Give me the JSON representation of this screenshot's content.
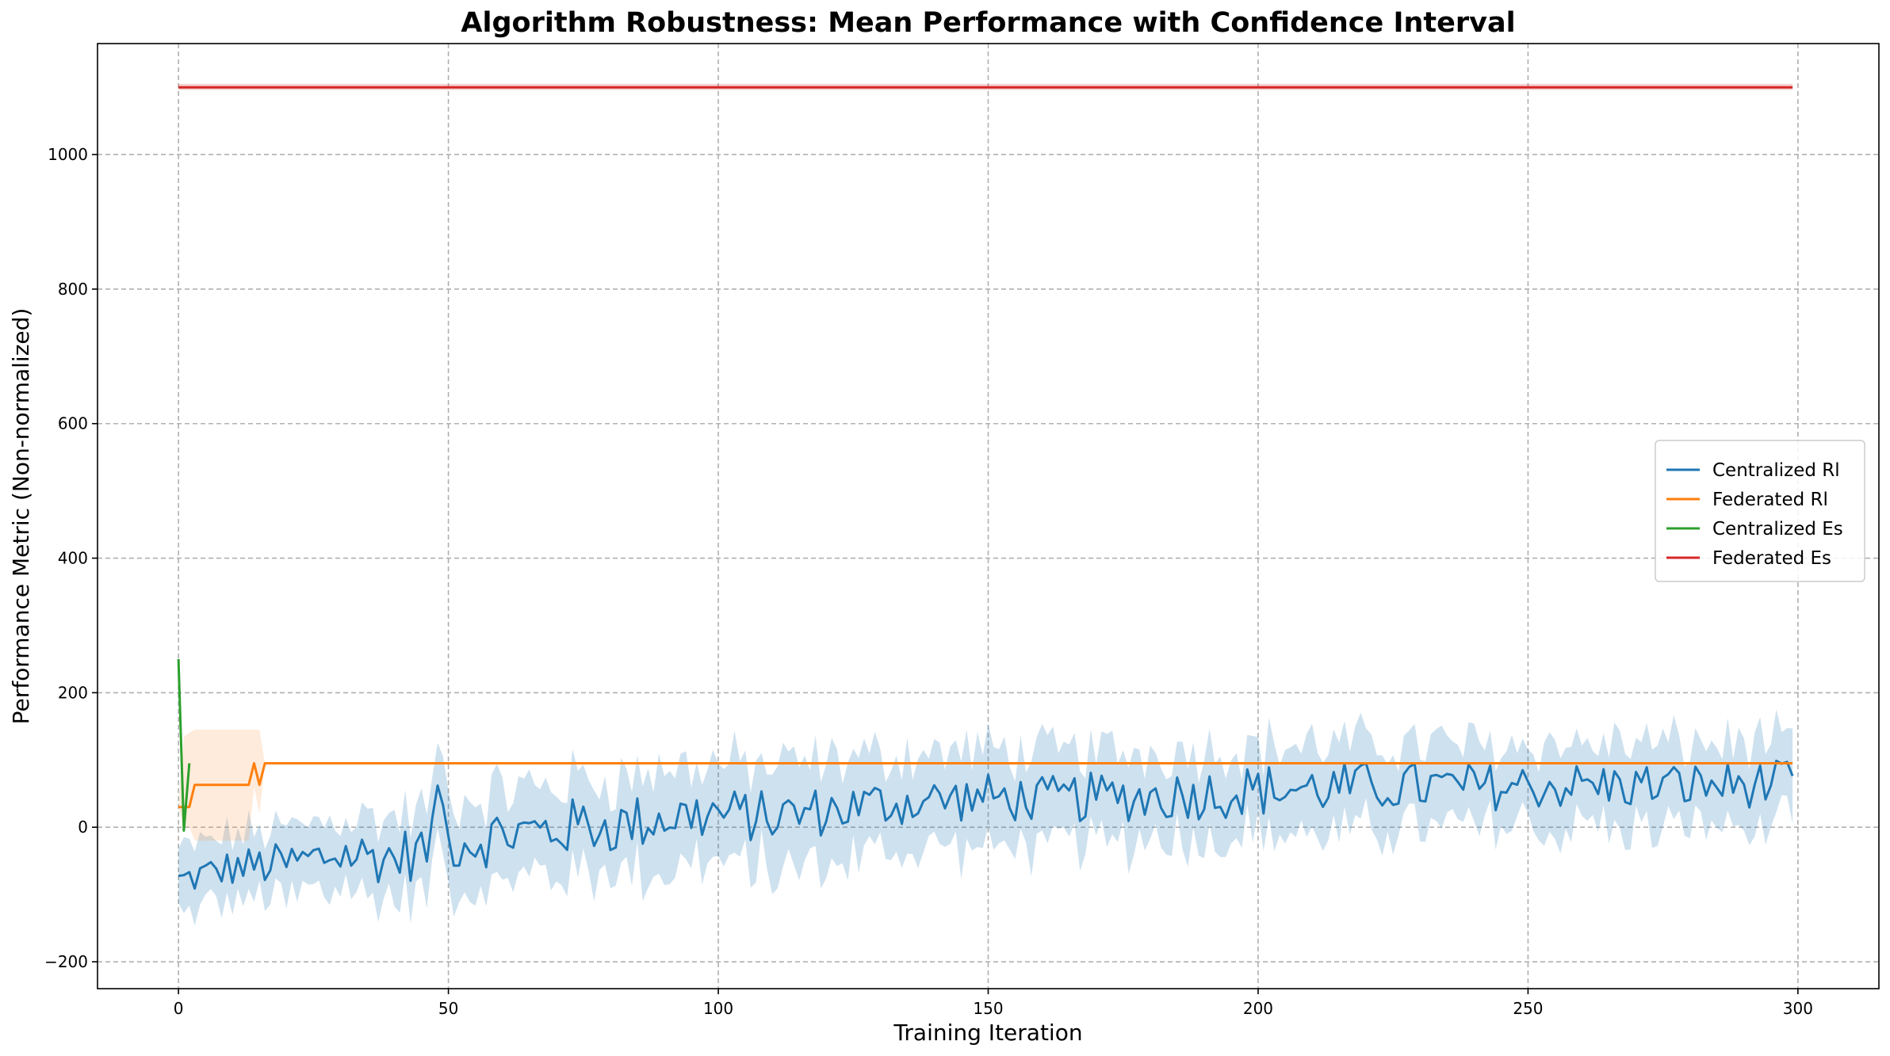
{
  "chart_data": {
    "type": "line",
    "title": "Algorithm Robustness: Mean Performance with Confidence Interval",
    "xlabel": "Training Iteration",
    "ylabel": "Performance Metric (Non-normalized)",
    "xlim": [
      -15,
      315
    ],
    "ylim": [
      -240,
      1165
    ],
    "xticks": [
      0,
      50,
      100,
      150,
      200,
      250,
      300
    ],
    "yticks": [
      -200,
      0,
      200,
      400,
      600,
      800,
      1000
    ],
    "grid": true,
    "legend_position": "center-right",
    "legend": [
      "Centralized Rl",
      "Federated Rl",
      "Centralized Es",
      "Federated Es"
    ],
    "series": [
      {
        "name": "Centralized Rl",
        "color": "#1f77b4",
        "band_color": "#1f77b4",
        "band_halfwidth": [
          [
            0,
            45
          ],
          [
            50,
            62
          ],
          [
            100,
            75
          ],
          [
            150,
            70
          ],
          [
            200,
            65
          ],
          [
            250,
            62
          ],
          [
            299,
            62
          ]
        ],
        "anchors": [
          [
            0,
            -80
          ],
          [
            10,
            -60
          ],
          [
            20,
            -55
          ],
          [
            30,
            -40
          ],
          [
            40,
            -45
          ],
          [
            47,
            -30
          ],
          [
            48,
            55
          ],
          [
            50,
            -20
          ],
          [
            55,
            -20
          ],
          [
            60,
            -10
          ],
          [
            70,
            -5
          ],
          [
            75,
            5
          ],
          [
            80,
            0
          ],
          [
            90,
            15
          ],
          [
            100,
            20
          ],
          [
            110,
            15
          ],
          [
            120,
            25
          ],
          [
            130,
            35
          ],
          [
            140,
            40
          ],
          [
            150,
            45
          ],
          [
            160,
            40
          ],
          [
            170,
            45
          ],
          [
            180,
            45
          ],
          [
            190,
            50
          ],
          [
            200,
            55
          ],
          [
            220,
            60
          ],
          [
            240,
            60
          ],
          [
            260,
            62
          ],
          [
            280,
            62
          ],
          [
            299,
            65
          ]
        ],
        "noise_amplitude": [
          [
            0,
            25
          ],
          [
            50,
            45
          ],
          [
            100,
            40
          ],
          [
            150,
            35
          ],
          [
            200,
            40
          ],
          [
            250,
            35
          ],
          [
            299,
            35
          ]
        ]
      },
      {
        "name": "Federated Rl",
        "color": "#ff7f0e",
        "band_color": "#ffa559",
        "points": [
          [
            0,
            30
          ],
          [
            1,
            30
          ],
          [
            2,
            30
          ],
          [
            3,
            63
          ],
          [
            13,
            63
          ],
          [
            14,
            95
          ],
          [
            15,
            63
          ],
          [
            16,
            95
          ],
          [
            299,
            95
          ]
        ],
        "band": [
          [
            0,
            30,
            30
          ],
          [
            1,
            0,
            135
          ],
          [
            2,
            0,
            140
          ],
          [
            3,
            -20,
            145
          ],
          [
            13,
            -20,
            145
          ],
          [
            14,
            60,
            145
          ],
          [
            15,
            20,
            145
          ],
          [
            16,
            95,
            95
          ],
          [
            299,
            95,
            95
          ]
        ]
      },
      {
        "name": "Centralized Es",
        "color": "#2ca02c",
        "band_color": "#2ca02c",
        "points": [
          [
            0,
            250
          ],
          [
            1,
            -5
          ],
          [
            2,
            95
          ]
        ],
        "band": [
          [
            0,
            250,
            250
          ],
          [
            1,
            -5,
            -5
          ],
          [
            2,
            95,
            95
          ]
        ]
      },
      {
        "name": "Federated Es",
        "color": "#d62728",
        "band_color": "#d62728",
        "points": [
          [
            0,
            1100
          ],
          [
            299,
            1100
          ]
        ],
        "band": [
          [
            0,
            1096,
            1105
          ],
          [
            299,
            1096,
            1105
          ]
        ]
      }
    ]
  }
}
